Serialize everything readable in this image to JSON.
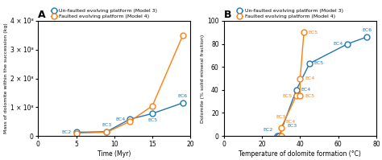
{
  "chart_data": [
    {
      "type": "line",
      "marker": "o",
      "title": "A",
      "x_label": "Time (Myr)",
      "y_label": "Mass of dolomite within the succession (kg)",
      "xlim": [
        0,
        20
      ],
      "ylim": [
        0,
        400000000
      ],
      "xticks": [
        0,
        5,
        10,
        15,
        20
      ],
      "yticks": [
        0,
        {
          "value": 100000000,
          "label": "1 × 10⁸"
        },
        {
          "value": 200000000,
          "label": "2 × 10⁸"
        },
        {
          "value": 300000000,
          "label": "3 × 10⁸"
        },
        {
          "value": 400000000,
          "label": "4 × 10⁸"
        }
      ],
      "legend": "upper left",
      "series": [
        {
          "name": "Un-faulted evolving platform (Model 3)",
          "x": [
            5,
            9,
            12,
            15,
            19
          ],
          "values": [
            13000000,
            15000000,
            58000000,
            78000000,
            115000000
          ],
          "point_labels": [
            "EC2",
            "EC3",
            "EC4",
            "EC5",
            "EC6"
          ]
        },
        {
          "name": "Faulted evolving platform (Model 4)",
          "x": [
            5,
            9,
            12,
            15,
            19
          ],
          "values": [
            10000000,
            13000000,
            50000000,
            105000000,
            350000000
          ]
        }
      ]
    },
    {
      "type": "line",
      "marker": "o",
      "title": "B",
      "x_label": "Temperature of dolomite formation (°C)",
      "y_label": "Dolomite (% solid mineral fraction)",
      "xlim": [
        0,
        80
      ],
      "ylim": [
        0,
        100
      ],
      "xticks": [
        0,
        20,
        40,
        60,
        80
      ],
      "yticks": [
        0,
        20,
        40,
        60,
        80,
        100
      ],
      "legend": "upper left",
      "series": [
        {
          "name": "Un-faulted evolving platform (Model 3)",
          "x": [
            28,
            29,
            38,
            45,
            65,
            75
          ],
          "values": [
            0,
            0,
            40,
            63,
            80,
            86
          ],
          "point_labels": [
            "EC2",
            "EC3",
            "EC4",
            "EC5",
            "EC4",
            "EC6"
          ]
        },
        {
          "name": "Faulted evolving platform (Model 4)",
          "x": [
            30,
            30,
            38,
            40,
            40,
            42
          ],
          "values": [
            0,
            7,
            35,
            35,
            50,
            90
          ],
          "point_labels": [
            "EC3",
            "EC4",
            "EC5",
            "EC5",
            "EC4",
            "EC5"
          ]
        }
      ]
    }
  ]
}
